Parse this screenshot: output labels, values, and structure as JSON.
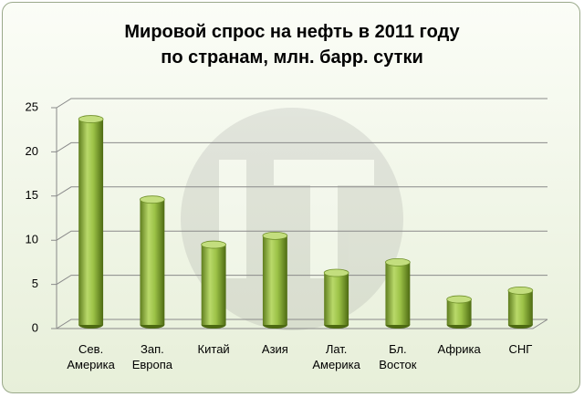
{
  "chart_data": {
    "type": "bar",
    "title": "Мировой спрос на нефть в 2011 году",
    "subtitle": "по странам, млн. барр. сутки",
    "categories": [
      "Сев. Америка",
      "Зап. Европа",
      "Китай",
      "Азия",
      "Лат. Америка",
      "Бл. Восток",
      "Африка",
      "СНГ"
    ],
    "values": [
      23.7,
      14.6,
      9.5,
      10.5,
      6.3,
      7.5,
      3.3,
      4.3
    ],
    "color": "#9cc247",
    "ylim": [
      0,
      25
    ],
    "yticks": [
      0,
      5,
      10,
      15,
      20,
      25
    ],
    "grid": true
  }
}
